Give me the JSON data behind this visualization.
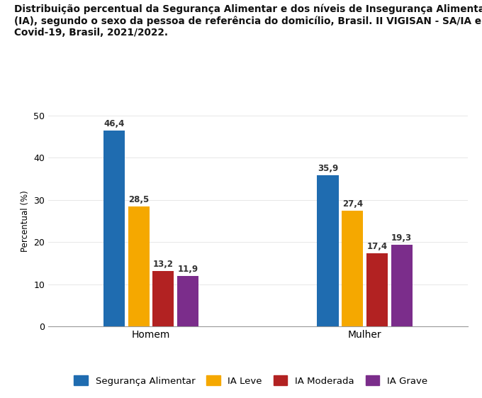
{
  "title_line1": "Distribuição percentual da Segurança Alimentar e dos níveis de Insegurança Alimentar",
  "title_line2": "(IA), segundo o sexo da pessoa de referência do domicílio, Brasil. II VIGISAN - SA/IA e",
  "title_line3": "Covid-19, Brasil, 2021/2022.",
  "groups": [
    "Homem",
    "Mulher"
  ],
  "categories": [
    "Segurança Alimentar",
    "IA Leve",
    "IA Moderada",
    "IA Grave"
  ],
  "values": {
    "Homem": [
      46.4,
      28.5,
      13.2,
      11.9
    ],
    "Mulher": [
      35.9,
      27.4,
      17.4,
      19.3
    ]
  },
  "colors": [
    "#1f6cb0",
    "#f5a800",
    "#b22222",
    "#7b2d8b"
  ],
  "ylabel": "Percentual (%)",
  "ylim": [
    0,
    50
  ],
  "yticks": [
    0,
    10,
    20,
    30,
    40,
    50
  ],
  "bar_width": 0.12,
  "background_color": "#ffffff",
  "title_fontsize": 9.8,
  "label_fontsize": 8.5,
  "tick_fontsize": 9,
  "legend_fontsize": 9.5,
  "value_label_color": "#333333"
}
